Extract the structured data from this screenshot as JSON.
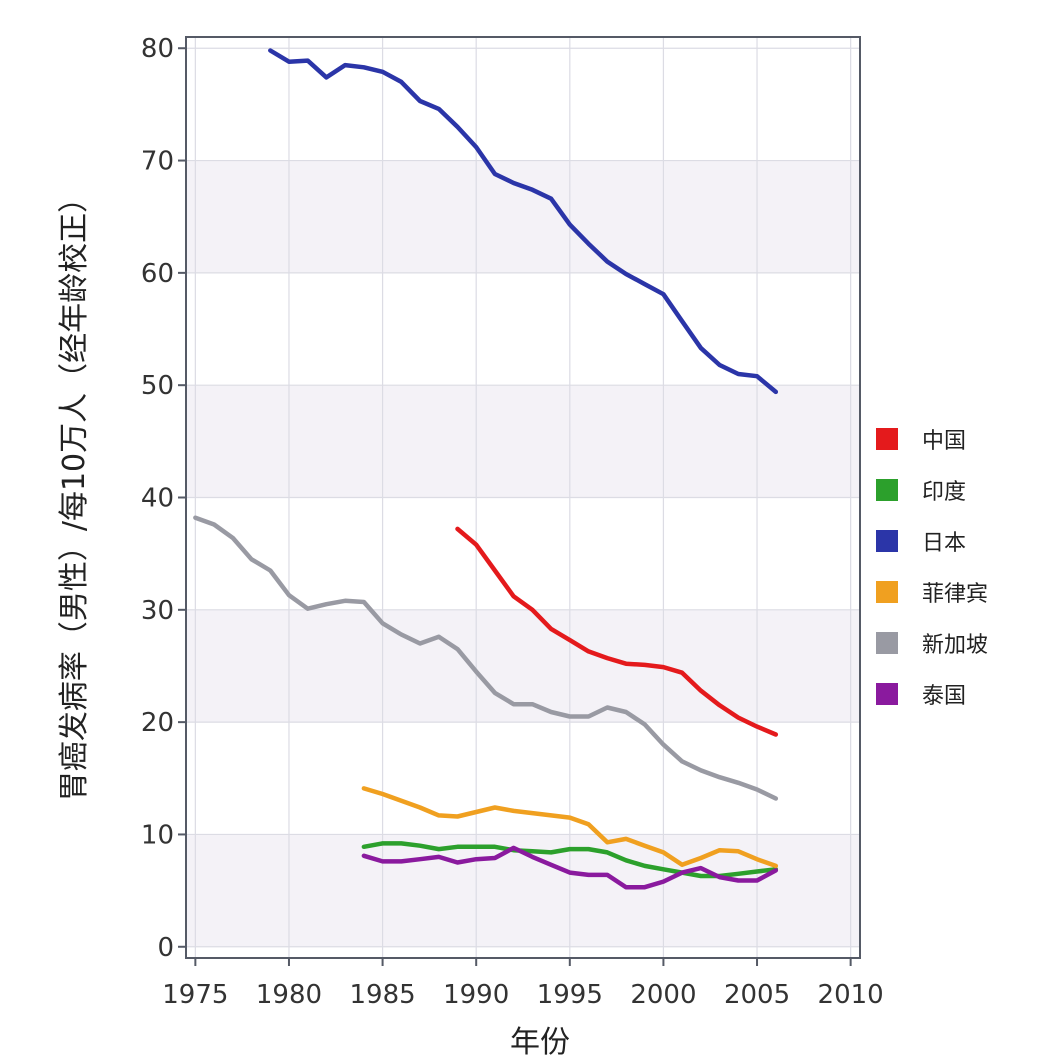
{
  "chart_data": {
    "type": "line",
    "title": "",
    "xlabel": "年份",
    "ylabel": "胃癌发病率（男性）/每10万人（经年龄校正）",
    "xlim": [
      1974.5,
      2010.5
    ],
    "ylim": [
      -1,
      81
    ],
    "xticks": [
      1975,
      1980,
      1985,
      1990,
      1995,
      2000,
      2005,
      2010
    ],
    "yticks": [
      0,
      10,
      20,
      30,
      40,
      50,
      60,
      70,
      80
    ],
    "grid": true,
    "legend_position": "right",
    "series": [
      {
        "name": "中国",
        "color": "#e41a1c",
        "x": [
          1989,
          1990,
          1991,
          1992,
          1993,
          1994,
          1995,
          1996,
          1997,
          1998,
          1999,
          2000,
          2001,
          2002,
          2003,
          2004,
          2005,
          2006
        ],
        "y": [
          37.2,
          35.8,
          33.5,
          31.2,
          30.0,
          28.3,
          27.3,
          26.3,
          25.7,
          25.2,
          25.1,
          24.9,
          24.4,
          22.8,
          21.5,
          20.4,
          19.6,
          18.9
        ]
      },
      {
        "name": "印度",
        "color": "#2ca02c",
        "x": [
          1984,
          1985,
          1986,
          1987,
          1988,
          1989,
          1990,
          1991,
          1992,
          1993,
          1994,
          1995,
          1996,
          1997,
          1998,
          1999,
          2000,
          2001,
          2002,
          2003,
          2004,
          2005,
          2006
        ],
        "y": [
          8.9,
          9.2,
          9.2,
          9.0,
          8.7,
          8.9,
          8.9,
          8.9,
          8.6,
          8.5,
          8.4,
          8.7,
          8.7,
          8.4,
          7.7,
          7.2,
          6.9,
          6.6,
          6.3,
          6.3,
          6.5,
          6.7,
          6.9
        ]
      },
      {
        "name": "日本",
        "color": "#2b35a8",
        "x": [
          1979,
          1980,
          1981,
          1982,
          1983,
          1984,
          1985,
          1986,
          1987,
          1988,
          1989,
          1990,
          1991,
          1992,
          1993,
          1994,
          1995,
          1996,
          1997,
          1998,
          1999,
          2000,
          2001,
          2002,
          2003,
          2004,
          2005,
          2006
        ],
        "y": [
          79.8,
          78.8,
          78.9,
          77.4,
          78.5,
          78.3,
          77.9,
          77.0,
          75.3,
          74.6,
          73.0,
          71.2,
          68.8,
          68.0,
          67.4,
          66.6,
          64.3,
          62.6,
          61.0,
          59.9,
          59.0,
          58.1,
          55.7,
          53.3,
          51.8,
          51.0,
          50.8,
          49.4
        ]
      },
      {
        "name": "菲律宾",
        "color": "#f0a020",
        "x": [
          1984,
          1985,
          1986,
          1987,
          1988,
          1989,
          1990,
          1991,
          1992,
          1993,
          1994,
          1995,
          1996,
          1997,
          1998,
          1999,
          2000,
          2001,
          2002,
          2003,
          2004,
          2005,
          2006
        ],
        "y": [
          14.1,
          13.6,
          13.0,
          12.4,
          11.7,
          11.6,
          12.0,
          12.4,
          12.1,
          11.9,
          11.7,
          11.5,
          10.9,
          9.3,
          9.6,
          9.0,
          8.4,
          7.3,
          7.9,
          8.6,
          8.5,
          7.8,
          7.2
        ]
      },
      {
        "name": "新加坡",
        "color": "#999aa3",
        "x": [
          1975,
          1976,
          1977,
          1978,
          1979,
          1980,
          1981,
          1982,
          1983,
          1984,
          1985,
          1986,
          1987,
          1988,
          1989,
          1990,
          1991,
          1992,
          1993,
          1994,
          1995,
          1996,
          1997,
          1998,
          1999,
          2000,
          2001,
          2002,
          2003,
          2004,
          2005,
          2006
        ],
        "y": [
          38.2,
          37.6,
          36.4,
          34.5,
          33.5,
          31.3,
          30.1,
          30.5,
          30.8,
          30.7,
          28.8,
          27.8,
          27.0,
          27.6,
          26.5,
          24.5,
          22.6,
          21.6,
          21.6,
          20.9,
          20.5,
          20.5,
          21.3,
          20.9,
          19.8,
          18.0,
          16.5,
          15.7,
          15.1,
          14.6,
          14.0,
          13.2
        ]
      },
      {
        "name": "泰国",
        "color": "#8a1a9e",
        "x": [
          1984,
          1985,
          1986,
          1987,
          1988,
          1989,
          1990,
          1991,
          1992,
          1993,
          1994,
          1995,
          1996,
          1997,
          1998,
          1999,
          2000,
          2001,
          2002,
          2003,
          2004,
          2005,
          2006
        ],
        "y": [
          8.1,
          7.6,
          7.6,
          7.8,
          8.0,
          7.5,
          7.8,
          7.9,
          8.8,
          8.0,
          7.3,
          6.6,
          6.4,
          6.4,
          5.3,
          5.3,
          5.8,
          6.6,
          7.0,
          6.2,
          5.9,
          5.9,
          6.8
        ]
      }
    ]
  }
}
